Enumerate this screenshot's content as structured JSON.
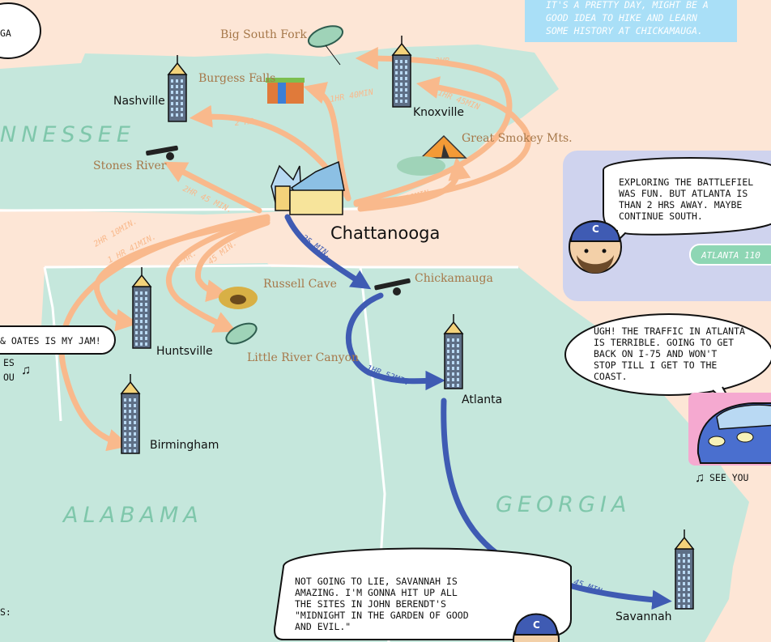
{
  "states": {
    "tennessee": "NNESSEE",
    "alabama": "ALABAMA",
    "georgia": "GEORGIA"
  },
  "cities": {
    "nashville": "Nashville",
    "knoxville": "Knoxville",
    "chattanooga": "Chattanooga",
    "huntsville": "Huntsville",
    "birmingham": "Birmingham",
    "atlanta": "Atlanta",
    "savannah": "Savannah"
  },
  "places": {
    "big_south_fork": "Big South Fork",
    "burgess_falls": "Burgess Falls",
    "great_smokey": "Great Smokey Mts.",
    "stones_river": "Stones River",
    "russell_cave": "Russell Cave",
    "little_river": "Little River Canyon",
    "chickamauga": "Chickamauga"
  },
  "times": {
    "nashville": "2 HR",
    "burgess": "1HR 40MIN",
    "big_south": "3HR",
    "knoxville": "1HR 45MIN",
    "smokey": "2HR 20MIN",
    "stones": "2HR 45 MIN.",
    "birmingham": "2HR 10MIN.",
    "huntsville": "1 HR 41MIN.",
    "little_river": "1 HR.",
    "russell": "45 MIN.",
    "chickamauga": "25 MIN.",
    "atlanta": "1HR 52MIN",
    "savannah": "3HR 45 MIN"
  },
  "captions": {
    "top_box": [
      "IT'S A PRETTY DAY, MIGHT BE A",
      "GOOD IDEA TO HIKE AND LEARN",
      "SOME HISTORY AT CHICKAMAUGA."
    ],
    "atlanta_tag": "ATLANTA 110"
  },
  "speech": {
    "top_left": "GA",
    "battlefield": [
      "EXPLORING THE BATTLEFIEL",
      "WAS FUN. BUT ATLANTA IS",
      "THAN 2 HRS AWAY. MAYBE",
      "CONTINUE SOUTH."
    ],
    "traffic": [
      "UGH! THE TRAFFIC IN ATLANTA",
      "IS TERRIBLE. GOING TO GET",
      "BACK ON I-75 AND WON'T",
      "STOP TILL I GET TO THE",
      "COAST."
    ],
    "oates": "& OATES IS MY JAM!",
    "oates_lyric": [
      "ES",
      "OU"
    ],
    "see_you": "SEE YOU",
    "savannah": [
      "NOT GOING TO LIE, SAVANNAH IS",
      "AMAZING. I'M GONNA HIT UP ALL",
      "THE SITES IN JOHN BERENDT'S",
      "\"MIDNIGHT IN THE GARDEN OF GOOD",
      "AND EVIL.\""
    ],
    "bottom_left": "S:"
  },
  "colors": {
    "land": "#c5e7dc",
    "sea": "#fde6d6",
    "orange": "#f9b98c",
    "blue": "#3f5bb3",
    "border": "#ffffff"
  }
}
